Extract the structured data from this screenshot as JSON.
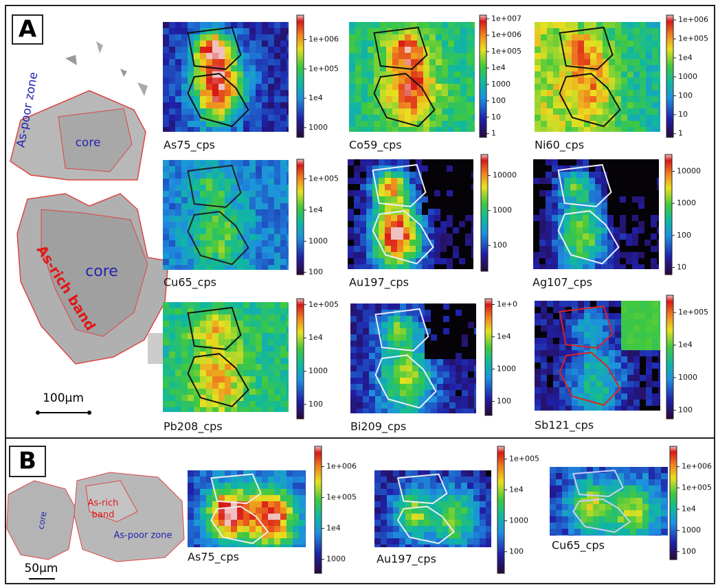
{
  "panels": [
    {
      "label": "A",
      "scale_bar": "100µm",
      "sample_labels": {
        "as_poor": "As-poor zone",
        "core_upper": "core",
        "as_rich": "As-rich band",
        "core_lower": "core"
      },
      "maps": [
        {
          "title": "As75_cps",
          "colorbar": [
            "1e+006",
            "1e+005",
            "1e4",
            "1000"
          ]
        },
        {
          "title": "Co59_cps",
          "colorbar": [
            "1e+007",
            "1e+006",
            "1e+005",
            "1e4",
            "1000",
            "100",
            "10",
            "1"
          ]
        },
        {
          "title": "Ni60_cps",
          "colorbar": [
            "1e+006",
            "1e+005",
            "1e4",
            "1000",
            "100",
            "10",
            "1"
          ]
        },
        {
          "title": "Cu65_cps",
          "colorbar": [
            "1e+005",
            "1e4",
            "1000",
            "100"
          ]
        },
        {
          "title": "Au197_cps",
          "colorbar": [
            "10000",
            "1000",
            "100"
          ]
        },
        {
          "title": "Ag107_cps",
          "colorbar": [
            "10000",
            "1000",
            "100",
            "10"
          ]
        },
        {
          "title": "Pb208_cps",
          "colorbar": [
            "1e+005",
            "1e4",
            "1000",
            "100"
          ]
        },
        {
          "title": "Bi209_cps",
          "colorbar": [
            "1e+0",
            "1e4",
            "1000",
            "100"
          ]
        },
        {
          "title": "Sb121_cps",
          "colorbar": [
            "1e+005",
            "1e4",
            "1000",
            "100"
          ]
        }
      ]
    },
    {
      "label": "B",
      "scale_bar": "50µm",
      "sample_labels": {
        "core": "core",
        "as_rich": [
          "As-rich",
          "band"
        ],
        "as_poor": "As-poor zone"
      },
      "maps": [
        {
          "title": "As75_cps",
          "colorbar": [
            "1e+006",
            "1e+005",
            "1e4",
            "1000"
          ]
        },
        {
          "title": "Au197_cps",
          "colorbar": [
            "1e+005",
            "1e4",
            "1000",
            "100"
          ]
        },
        {
          "title": "Cu65_cps",
          "colorbar": [
            "1e+006",
            "1e+005",
            "1e4",
            "1000",
            "100"
          ]
        }
      ]
    }
  ]
}
